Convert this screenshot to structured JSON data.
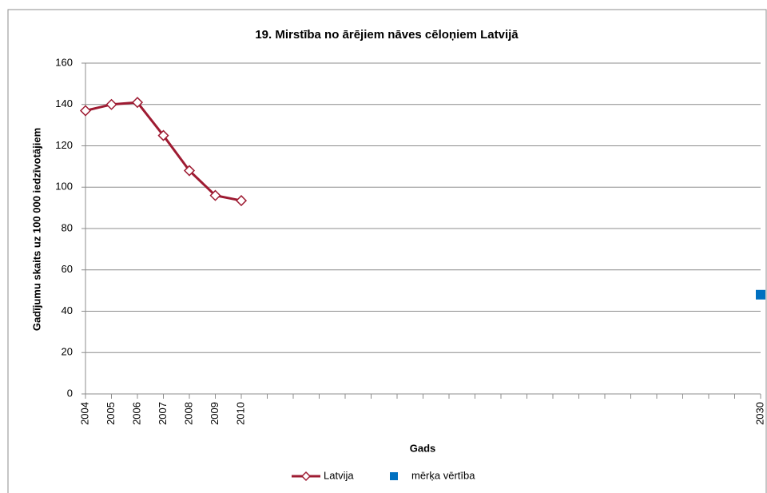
{
  "chart_data": {
    "type": "line",
    "title": "19. Mirstība no ārējiem nāves cēloņiem Latvijā",
    "x_label": "Gads",
    "y_label": "Gadījumu skaits uz 100 000 iedzīvotājiem",
    "categories": [
      "2004",
      "2005",
      "2006",
      "2007",
      "2008",
      "2009",
      "2010",
      null,
      null,
      null,
      null,
      null,
      null,
      null,
      null,
      null,
      null,
      null,
      null,
      null,
      null,
      null,
      null,
      null,
      null,
      null,
      "2030"
    ],
    "series": [
      {
        "name": "Latvija",
        "color": "#9e1b32",
        "marker": "diamond",
        "values": [
          137,
          140,
          141,
          125,
          108,
          96,
          93.5,
          null,
          null,
          null,
          null,
          null,
          null,
          null,
          null,
          null,
          null,
          null,
          null,
          null,
          null,
          null,
          null,
          null,
          null,
          null,
          null
        ]
      },
      {
        "name": "mērķa vērtība",
        "color": "#0070c0",
        "marker": "square",
        "values": [
          null,
          null,
          null,
          null,
          null,
          null,
          null,
          null,
          null,
          null,
          null,
          null,
          null,
          null,
          null,
          null,
          null,
          null,
          null,
          null,
          null,
          null,
          null,
          null,
          null,
          null,
          48
        ]
      }
    ],
    "ylim": [
      0,
      160
    ],
    "yticks": [
      0,
      20,
      40,
      60,
      80,
      100,
      120,
      140,
      160
    ],
    "grid": true,
    "legend": "bottom"
  }
}
